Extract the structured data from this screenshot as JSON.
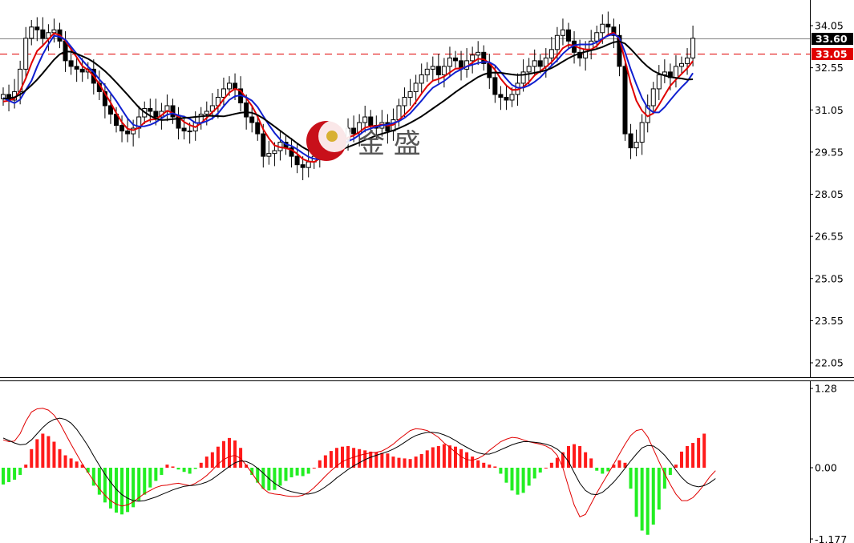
{
  "watermark": {
    "text": "金 盛"
  },
  "colors": {
    "up_candle": "#ffffff",
    "down_candle": "#000000",
    "ma_fast": "#e00000",
    "ma_mid": "#1020d0",
    "ma_slow": "#000000",
    "hist_pos": "#ff1a1a",
    "hist_neg": "#22ee22",
    "current_price_line": "#808080",
    "alert_line": "#e00000",
    "price_badge": "#000000",
    "alert_badge": "#e00000"
  },
  "price_axis": {
    "labels": [
      "34.05",
      "32.55",
      "31.05",
      "29.55",
      "28.05",
      "26.55",
      "25.05",
      "23.55",
      "22.05"
    ],
    "current_price": "33.60",
    "alert_price": "33.05"
  },
  "indicator_axis": {
    "labels": [
      "1.28",
      "0.00",
      "-1.177"
    ]
  },
  "chart_data": [
    {
      "type": "candlestick",
      "ylim": [
        21.5,
        34.7
      ],
      "grid": false,
      "y_ticks": [
        34.05,
        32.55,
        31.05,
        29.55,
        28.05,
        26.55,
        25.05,
        23.55,
        22.05
      ],
      "current_price": 33.6,
      "alert_level": 33.05,
      "close": [
        31.6,
        31.4,
        31.7,
        32.5,
        33.6,
        34.0,
        33.9,
        33.6,
        33.8,
        33.9,
        33.5,
        32.8,
        32.6,
        32.5,
        32.4,
        32.5,
        32.0,
        31.7,
        31.2,
        30.9,
        30.5,
        30.3,
        30.2,
        30.4,
        30.8,
        31.1,
        31.0,
        30.8,
        31.0,
        31.2,
        30.8,
        30.4,
        30.3,
        30.3,
        30.6,
        30.9,
        31.0,
        31.2,
        31.5,
        31.8,
        32.0,
        31.8,
        31.3,
        30.8,
        30.6,
        30.2,
        29.4,
        29.5,
        29.6,
        29.9,
        29.7,
        29.4,
        29.1,
        29.0,
        29.2,
        29.4,
        29.6,
        29.8,
        29.9,
        30.1,
        30.0,
        30.4,
        30.2,
        30.6,
        30.8,
        30.5,
        30.4,
        30.6,
        30.3,
        30.7,
        31.2,
        31.5,
        31.7,
        32.0,
        32.3,
        32.5,
        32.6,
        32.3,
        32.6,
        32.9,
        32.8,
        32.5,
        32.8,
        33.0,
        33.1,
        32.7,
        32.2,
        31.6,
        31.5,
        31.4,
        31.6,
        32.0,
        32.4,
        32.6,
        32.8,
        32.6,
        32.9,
        33.2,
        33.7,
        33.9,
        33.5,
        33.1,
        32.9,
        33.2,
        33.5,
        33.8,
        34.1,
        34.0,
        33.7,
        32.6,
        30.2,
        29.7,
        29.9,
        30.6,
        31.2,
        31.8,
        32.3,
        32.4,
        32.2,
        32.6,
        32.7,
        32.9,
        33.6
      ],
      "series": [
        {
          "name": "",
          "values": [
            31.35,
            31.38,
            31.45,
            31.73,
            32.18,
            32.71,
            33.15,
            33.34,
            33.56,
            33.78,
            33.71,
            33.51,
            33.21,
            32.93,
            32.61,
            32.47,
            32.26,
            31.97,
            31.64,
            31.31,
            30.94,
            30.61,
            30.38,
            30.33,
            30.41,
            30.61,
            30.7,
            30.72,
            30.86,
            31.02,
            30.94,
            30.81,
            30.62,
            30.51,
            30.44,
            30.58,
            30.77,
            30.97,
            31.16,
            31.43,
            31.67,
            31.8,
            31.73,
            31.47,
            31.19,
            30.81,
            30.36,
            30.04,
            29.79,
            29.72,
            29.69,
            29.63,
            29.49,
            29.3,
            29.22,
            29.2,
            29.32,
            29.47,
            29.64,
            29.81,
            29.92,
            30.07,
            30.14,
            30.26,
            30.42,
            30.47,
            30.48,
            30.53,
            30.49,
            30.52,
            30.69,
            30.88,
            31.07,
            31.34,
            31.63,
            31.9,
            32.09,
            32.15,
            32.24,
            32.38,
            32.52,
            32.53,
            32.59,
            32.73,
            32.87,
            32.85,
            32.72,
            32.47,
            32.16,
            31.92,
            31.76,
            31.77,
            31.87,
            32.04,
            32.28,
            32.43,
            32.58,
            32.75,
            32.99,
            33.25,
            33.37,
            33.34,
            33.25,
            33.2,
            33.2,
            33.33,
            33.56,
            33.73,
            33.8,
            33.58,
            32.81,
            32.01,
            31.38,
            31.02,
            30.82,
            30.93,
            31.23,
            31.58,
            31.91,
            32.13,
            32.33,
            32.53,
            32.79
          ]
        },
        {
          "name": "",
          "values": [
            31.48,
            31.38,
            31.29,
            31.42,
            31.76,
            32.09,
            32.59,
            33.03,
            33.39,
            33.69,
            33.65,
            33.55,
            33.3,
            33.05,
            32.82,
            32.59,
            32.39,
            32.14,
            31.92,
            31.65,
            31.37,
            31.06,
            30.75,
            30.52,
            30.46,
            30.47,
            30.52,
            30.61,
            30.75,
            30.88,
            30.93,
            30.86,
            30.81,
            30.73,
            30.59,
            30.58,
            30.65,
            30.75,
            30.93,
            31.18,
            31.41,
            31.54,
            31.57,
            31.5,
            31.38,
            31.15,
            30.83,
            30.52,
            30.23,
            30.0,
            29.83,
            29.77,
            29.65,
            29.51,
            29.38,
            29.31,
            29.29,
            29.35,
            29.5,
            29.65,
            29.8,
            29.94,
            30.02,
            30.16,
            30.32,
            30.39,
            30.45,
            30.5,
            30.53,
            30.58,
            30.65,
            30.77,
            30.93,
            31.15,
            31.38,
            31.63,
            31.84,
            31.96,
            32.08,
            32.24,
            32.39,
            32.49,
            32.6,
            32.66,
            32.72,
            32.76,
            32.75,
            32.63,
            32.4,
            32.16,
            31.94,
            31.84,
            31.84,
            31.92,
            32.05,
            32.21,
            32.42,
            32.63,
            32.82,
            33.05,
            33.23,
            33.35,
            33.38,
            33.38,
            33.38,
            33.46,
            33.59,
            33.69,
            33.75,
            33.62,
            33.1,
            32.5,
            31.96,
            31.48,
            31.12,
            30.96,
            30.96,
            31.15,
            31.4,
            31.64,
            31.86,
            32.06,
            32.36
          ]
        },
        {
          "name": "",
          "values": [
            31.45,
            31.46,
            31.5,
            31.6,
            31.75,
            31.93,
            32.13,
            32.36,
            32.6,
            32.84,
            33.03,
            33.13,
            33.12,
            33.05,
            32.96,
            32.87,
            32.75,
            32.6,
            32.43,
            32.24,
            32.03,
            31.81,
            31.59,
            31.36,
            31.14,
            30.97,
            30.84,
            30.74,
            30.69,
            30.7,
            30.72,
            30.74,
            30.77,
            30.78,
            30.8,
            30.82,
            30.84,
            30.84,
            30.83,
            30.82,
            30.86,
            30.91,
            30.95,
            30.97,
            30.95,
            30.87,
            30.75,
            30.61,
            30.46,
            30.31,
            30.16,
            30.01,
            29.86,
            29.72,
            29.61,
            29.55,
            29.52,
            29.52,
            29.55,
            29.6,
            29.66,
            29.73,
            29.81,
            29.89,
            29.98,
            30.06,
            30.14,
            30.2,
            30.26,
            30.32,
            30.4,
            30.49,
            30.59,
            30.7,
            30.82,
            30.96,
            31.1,
            31.24,
            31.38,
            31.53,
            31.68,
            31.82,
            31.96,
            32.09,
            32.22,
            32.31,
            32.37,
            32.38,
            32.37,
            32.34,
            32.31,
            32.29,
            32.3,
            32.33,
            32.37,
            32.41,
            32.46,
            32.54,
            32.65,
            32.77,
            32.89,
            32.99,
            33.06,
            33.12,
            33.17,
            33.22,
            33.29,
            33.38,
            33.46,
            33.49,
            33.41,
            33.22,
            33.0,
            32.78,
            32.59,
            32.44,
            32.34,
            32.27,
            32.22,
            32.19,
            32.17,
            32.13,
            32.14
          ]
        }
      ]
    },
    {
      "type": "bar",
      "ylim": [
        -1.177,
        1.28
      ],
      "histogram": [
        -0.28,
        -0.24,
        -0.2,
        -0.12,
        0.05,
        0.3,
        0.46,
        0.55,
        0.51,
        0.42,
        0.3,
        0.2,
        0.15,
        0.1,
        0.05,
        -0.08,
        -0.3,
        -0.45,
        -0.58,
        -0.68,
        -0.75,
        -0.78,
        -0.74,
        -0.66,
        -0.55,
        -0.45,
        -0.33,
        -0.22,
        -0.12,
        0.05,
        0.02,
        -0.03,
        -0.07,
        -0.1,
        -0.02,
        0.08,
        0.18,
        0.25,
        0.34,
        0.43,
        0.48,
        0.44,
        0.32,
        0.05,
        -0.12,
        -0.25,
        -0.35,
        -0.38,
        -0.37,
        -0.3,
        -0.22,
        -0.16,
        -0.13,
        -0.14,
        -0.1,
        0.0,
        0.12,
        0.2,
        0.27,
        0.32,
        0.34,
        0.35,
        0.32,
        0.3,
        0.28,
        0.26,
        0.25,
        0.24,
        0.23,
        0.18,
        0.16,
        0.15,
        0.14,
        0.18,
        0.22,
        0.28,
        0.33,
        0.35,
        0.38,
        0.36,
        0.34,
        0.3,
        0.25,
        0.18,
        0.12,
        0.08,
        0.05,
        0.02,
        -0.1,
        -0.25,
        -0.38,
        -0.45,
        -0.42,
        -0.3,
        -0.18,
        -0.08,
        0.0,
        0.08,
        0.16,
        0.25,
        0.35,
        0.38,
        0.35,
        0.25,
        0.15,
        -0.05,
        -0.1,
        -0.06,
        0.05,
        0.12,
        0.08,
        -0.35,
        -0.82,
        -1.05,
        -1.12,
        -0.95,
        -0.7,
        -0.35,
        -0.12,
        0.05,
        0.26,
        0.35,
        0.4,
        0.48,
        0.55
      ],
      "series": [
        {
          "name": "",
          "values": [
            0.45,
            0.42,
            0.43,
            0.55,
            0.75,
            0.9,
            0.95,
            0.96,
            0.93,
            0.85,
            0.72,
            0.55,
            0.38,
            0.22,
            0.06,
            -0.08,
            -0.22,
            -0.35,
            -0.46,
            -0.55,
            -0.61,
            -0.64,
            -0.62,
            -0.57,
            -0.5,
            -0.43,
            -0.38,
            -0.33,
            -0.3,
            -0.29,
            -0.27,
            -0.26,
            -0.28,
            -0.3,
            -0.26,
            -0.2,
            -0.13,
            -0.04,
            0.06,
            0.13,
            0.18,
            0.2,
            0.15,
            0.04,
            -0.09,
            -0.23,
            -0.35,
            -0.42,
            -0.44,
            -0.45,
            -0.47,
            -0.48,
            -0.48,
            -0.46,
            -0.41,
            -0.33,
            -0.24,
            -0.14,
            -0.05,
            0.03,
            0.1,
            0.14,
            0.17,
            0.2,
            0.22,
            0.24,
            0.25,
            0.27,
            0.32,
            0.38,
            0.46,
            0.53,
            0.6,
            0.63,
            0.62,
            0.6,
            0.55,
            0.49,
            0.4,
            0.33,
            0.25,
            0.18,
            0.13,
            0.12,
            0.15,
            0.2,
            0.28,
            0.35,
            0.42,
            0.46,
            0.49,
            0.48,
            0.45,
            0.42,
            0.4,
            0.38,
            0.35,
            0.3,
            0.2,
            0.0,
            -0.32,
            -0.62,
            -0.82,
            -0.78,
            -0.6,
            -0.42,
            -0.26,
            -0.1,
            0.06,
            0.22,
            0.38,
            0.52,
            0.6,
            0.62,
            0.5,
            0.3,
            0.1,
            -0.1,
            -0.28,
            -0.44,
            -0.55,
            -0.55,
            -0.5,
            -0.4,
            -0.28,
            -0.15,
            -0.05
          ]
        },
        {
          "name": "",
          "values": [
            0.48,
            0.44,
            0.4,
            0.37,
            0.38,
            0.45,
            0.55,
            0.65,
            0.73,
            0.78,
            0.8,
            0.78,
            0.72,
            0.62,
            0.49,
            0.35,
            0.19,
            0.04,
            -0.11,
            -0.24,
            -0.36,
            -0.45,
            -0.51,
            -0.55,
            -0.56,
            -0.55,
            -0.52,
            -0.49,
            -0.45,
            -0.41,
            -0.37,
            -0.34,
            -0.31,
            -0.3,
            -0.29,
            -0.27,
            -0.24,
            -0.19,
            -0.12,
            -0.05,
            0.02,
            0.08,
            0.11,
            0.1,
            0.06,
            -0.01,
            -0.09,
            -0.18,
            -0.26,
            -0.32,
            -0.37,
            -0.4,
            -0.42,
            -0.44,
            -0.44,
            -0.42,
            -0.38,
            -0.32,
            -0.25,
            -0.17,
            -0.1,
            -0.03,
            0.03,
            0.08,
            0.13,
            0.17,
            0.2,
            0.23,
            0.26,
            0.3,
            0.35,
            0.41,
            0.47,
            0.52,
            0.55,
            0.57,
            0.57,
            0.56,
            0.53,
            0.49,
            0.44,
            0.38,
            0.33,
            0.28,
            0.24,
            0.22,
            0.22,
            0.25,
            0.29,
            0.33,
            0.37,
            0.4,
            0.42,
            0.42,
            0.41,
            0.4,
            0.38,
            0.35,
            0.3,
            0.22,
            0.1,
            -0.08,
            -0.26,
            -0.38,
            -0.44,
            -0.45,
            -0.41,
            -0.33,
            -0.24,
            -0.13,
            -0.01,
            0.11,
            0.22,
            0.32,
            0.36,
            0.35,
            0.29,
            0.2,
            0.09,
            -0.04,
            -0.16,
            -0.25,
            -0.3,
            -0.32,
            -0.3,
            -0.25,
            -0.18
          ]
        }
      ]
    }
  ]
}
